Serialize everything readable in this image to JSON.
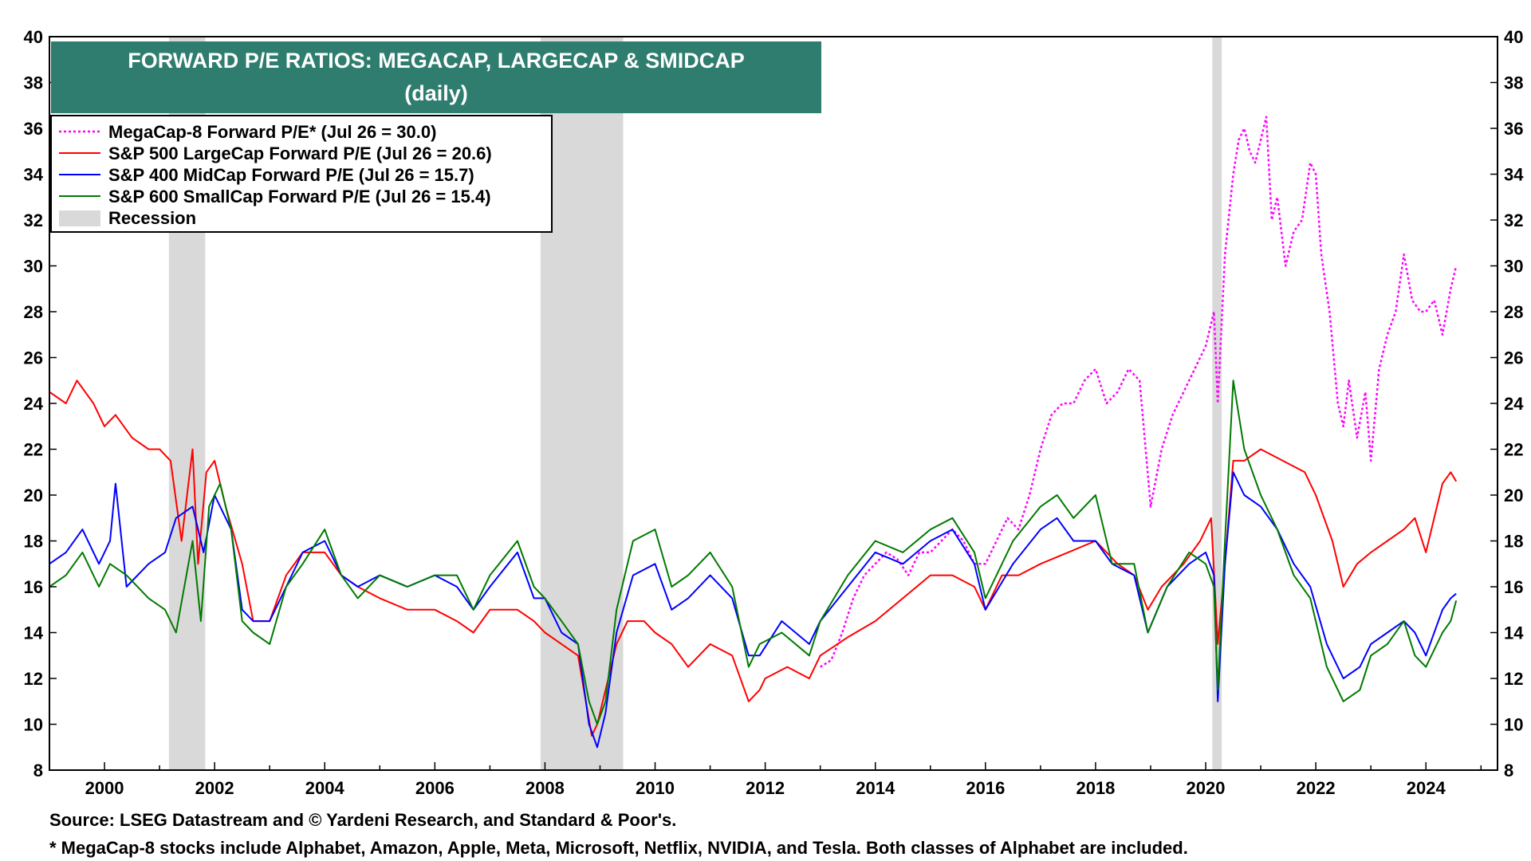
{
  "colors": {
    "megacap": "#ff00ff",
    "largecap": "#ff0000",
    "midcap": "#0000ff",
    "smallcap": "#007a00",
    "recession": "#d9d9d9",
    "title_bg": "#2e7d6e"
  },
  "chart_data": {
    "type": "line",
    "title": "FORWARD P/E RATIOS: MEGACAP, LARGECAP & SMIDCAP",
    "subtitle": "(daily)",
    "xlim": [
      1999.0,
      2025.3
    ],
    "ylim": [
      8,
      40
    ],
    "x_ticks": [
      2000,
      2002,
      2004,
      2006,
      2008,
      2010,
      2012,
      2014,
      2016,
      2018,
      2020,
      2022,
      2024
    ],
    "y_ticks": [
      8,
      10,
      12,
      14,
      16,
      18,
      20,
      22,
      24,
      26,
      28,
      30,
      32,
      34,
      36,
      38,
      40
    ],
    "grid": false,
    "legend_position": "top-left",
    "recessions": [
      {
        "start": 2001.17,
        "end": 2001.83
      },
      {
        "start": 2007.92,
        "end": 2009.42
      },
      {
        "start": 2020.12,
        "end": 2020.29
      }
    ],
    "legend": [
      {
        "key": "megacap",
        "label": "MegaCap-8 Forward P/E* (Jul 26 = 30.0)",
        "style": "dotted"
      },
      {
        "key": "largecap",
        "label": "S&P 500 LargeCap Forward P/E (Jul 26 = 20.6)",
        "style": "solid"
      },
      {
        "key": "midcap",
        "label": "S&P 400 MidCap Forward P/E (Jul 26 = 15.7)",
        "style": "solid"
      },
      {
        "key": "smallcap",
        "label": "S&P 600 SmallCap Forward P/E (Jul 26 = 15.4)",
        "style": "solid"
      },
      {
        "key": "recession",
        "label": "Recession",
        "style": "box"
      }
    ],
    "series": [
      {
        "name": "MegaCap-8 Forward P/E*",
        "key": "megacap",
        "dashed": true,
        "x": [
          2013.0,
          2013.2,
          2013.4,
          2013.6,
          2013.8,
          2014.0,
          2014.2,
          2014.4,
          2014.6,
          2014.8,
          2015.0,
          2015.2,
          2015.4,
          2015.6,
          2015.8,
          2016.0,
          2016.2,
          2016.4,
          2016.6,
          2016.8,
          2017.0,
          2017.2,
          2017.4,
          2017.6,
          2017.8,
          2018.0,
          2018.2,
          2018.4,
          2018.6,
          2018.8,
          2019.0,
          2019.2,
          2019.4,
          2019.6,
          2019.8,
          2020.0,
          2020.15,
          2020.22,
          2020.35,
          2020.5,
          2020.6,
          2020.7,
          2020.8,
          2020.9,
          2021.0,
          2021.1,
          2021.2,
          2021.3,
          2021.45,
          2021.6,
          2021.75,
          2021.9,
          2022.0,
          2022.1,
          2022.25,
          2022.4,
          2022.5,
          2022.6,
          2022.75,
          2022.9,
          2023.0,
          2023.15,
          2023.3,
          2023.45,
          2023.6,
          2023.75,
          2023.9,
          2024.0,
          2024.15,
          2024.3,
          2024.45,
          2024.55
        ],
        "y": [
          12.5,
          12.8,
          14.0,
          15.5,
          16.5,
          17.0,
          17.5,
          17.2,
          16.5,
          17.5,
          17.5,
          18.0,
          18.5,
          18.0,
          17.0,
          17.0,
          18.0,
          19.0,
          18.5,
          20.0,
          22.0,
          23.5,
          24.0,
          24.0,
          25.0,
          25.5,
          24.0,
          24.5,
          25.5,
          25.0,
          19.5,
          22.0,
          23.5,
          24.5,
          25.5,
          26.5,
          28.0,
          24.0,
          30.5,
          34.0,
          35.5,
          36.0,
          35.0,
          34.5,
          35.5,
          36.5,
          32.0,
          33.0,
          30.0,
          31.5,
          32.0,
          34.5,
          34.0,
          30.5,
          28.0,
          24.0,
          23.0,
          25.0,
          22.5,
          24.5,
          21.5,
          25.5,
          27.0,
          28.0,
          30.5,
          28.5,
          28.0,
          28.0,
          28.5,
          27.0,
          29.0,
          30.0
        ]
      },
      {
        "name": "S&P 500 LargeCap Forward P/E",
        "key": "largecap",
        "dashed": false,
        "x": [
          1999.0,
          1999.3,
          1999.5,
          1999.8,
          2000.0,
          2000.2,
          2000.5,
          2000.8,
          2001.0,
          2001.2,
          2001.4,
          2001.6,
          2001.7,
          2001.85,
          2002.0,
          2002.2,
          2002.5,
          2002.7,
          2003.0,
          2003.3,
          2003.6,
          2004.0,
          2004.3,
          2004.6,
          2005.0,
          2005.5,
          2006.0,
          2006.4,
          2006.7,
          2007.0,
          2007.5,
          2007.8,
          2008.0,
          2008.3,
          2008.6,
          2008.85,
          2008.95,
          2009.1,
          2009.3,
          2009.5,
          2009.8,
          2010.0,
          2010.3,
          2010.6,
          2011.0,
          2011.4,
          2011.7,
          2011.9,
          2012.0,
          2012.4,
          2012.8,
          2013.0,
          2013.5,
          2014.0,
          2014.5,
          2015.0,
          2015.4,
          2015.8,
          2016.0,
          2016.3,
          2016.6,
          2017.0,
          2017.5,
          2018.0,
          2018.4,
          2018.7,
          2018.95,
          2019.2,
          2019.6,
          2019.9,
          2020.1,
          2020.22,
          2020.35,
          2020.5,
          2020.7,
          2021.0,
          2021.4,
          2021.8,
          2022.0,
          2022.3,
          2022.5,
          2022.75,
          2023.0,
          2023.3,
          2023.6,
          2023.8,
          2024.0,
          2024.3,
          2024.45,
          2024.55
        ],
        "y": [
          24.5,
          24.0,
          25.0,
          24.0,
          23.0,
          23.5,
          22.5,
          22.0,
          22.0,
          21.5,
          18.0,
          22.0,
          17.0,
          21.0,
          21.5,
          19.5,
          17.0,
          14.5,
          14.5,
          16.5,
          17.5,
          17.5,
          16.5,
          16.0,
          15.5,
          15.0,
          15.0,
          14.5,
          14.0,
          15.0,
          15.0,
          14.5,
          14.0,
          13.5,
          13.0,
          9.5,
          10.0,
          11.5,
          13.5,
          14.5,
          14.5,
          14.0,
          13.5,
          12.5,
          13.5,
          13.0,
          11.0,
          11.5,
          12.0,
          12.5,
          12.0,
          13.0,
          13.8,
          14.5,
          15.5,
          16.5,
          16.5,
          16.0,
          15.0,
          16.5,
          16.5,
          17.0,
          17.5,
          18.0,
          17.0,
          16.5,
          15.0,
          16.0,
          17.0,
          18.0,
          19.0,
          13.5,
          17.0,
          21.5,
          21.5,
          22.0,
          21.5,
          21.0,
          20.0,
          18.0,
          16.0,
          17.0,
          17.5,
          18.0,
          18.5,
          19.0,
          17.5,
          20.5,
          21.0,
          20.6
        ]
      },
      {
        "name": "S&P 400 MidCap Forward P/E",
        "key": "midcap",
        "dashed": false,
        "x": [
          1999.0,
          1999.3,
          1999.6,
          1999.9,
          2000.1,
          2000.2,
          2000.4,
          2000.8,
          2001.1,
          2001.3,
          2001.6,
          2001.8,
          2002.0,
          2002.3,
          2002.5,
          2002.7,
          2003.0,
          2003.3,
          2003.6,
          2004.0,
          2004.3,
          2004.6,
          2005.0,
          2005.5,
          2006.0,
          2006.4,
          2006.7,
          2007.0,
          2007.5,
          2007.8,
          2008.0,
          2008.3,
          2008.6,
          2008.8,
          2008.95,
          2009.1,
          2009.3,
          2009.6,
          2010.0,
          2010.3,
          2010.6,
          2011.0,
          2011.4,
          2011.7,
          2011.9,
          2012.3,
          2012.8,
          2013.0,
          2013.5,
          2014.0,
          2014.5,
          2015.0,
          2015.4,
          2015.8,
          2016.0,
          2016.5,
          2017.0,
          2017.3,
          2017.6,
          2018.0,
          2018.3,
          2018.7,
          2018.95,
          2019.3,
          2019.7,
          2020.0,
          2020.15,
          2020.22,
          2020.35,
          2020.5,
          2020.7,
          2021.0,
          2021.3,
          2021.6,
          2021.9,
          2022.2,
          2022.5,
          2022.8,
          2023.0,
          2023.3,
          2023.6,
          2023.8,
          2024.0,
          2024.3,
          2024.45,
          2024.55
        ],
        "y": [
          17.0,
          17.5,
          18.5,
          17.0,
          18.0,
          20.5,
          16.0,
          17.0,
          17.5,
          19.0,
          19.5,
          17.5,
          20.0,
          18.5,
          15.0,
          14.5,
          14.5,
          16.0,
          17.5,
          18.0,
          16.5,
          16.0,
          16.5,
          16.0,
          16.5,
          16.0,
          15.0,
          16.0,
          17.5,
          15.5,
          15.5,
          14.0,
          13.5,
          10.0,
          9.0,
          10.5,
          14.0,
          16.5,
          17.0,
          15.0,
          15.5,
          16.5,
          15.5,
          13.0,
          13.0,
          14.5,
          13.5,
          14.5,
          16.0,
          17.5,
          17.0,
          18.0,
          18.5,
          17.0,
          15.0,
          17.0,
          18.5,
          19.0,
          18.0,
          18.0,
          17.0,
          16.5,
          14.0,
          16.0,
          17.0,
          17.5,
          16.5,
          11.0,
          17.0,
          21.0,
          20.0,
          19.5,
          18.5,
          17.0,
          16.0,
          13.5,
          12.0,
          12.5,
          13.5,
          14.0,
          14.5,
          14.0,
          13.0,
          15.0,
          15.5,
          15.7
        ]
      },
      {
        "name": "S&P 600 SmallCap Forward P/E",
        "key": "smallcap",
        "dashed": false,
        "x": [
          1999.0,
          1999.3,
          1999.6,
          1999.9,
          2000.1,
          2000.4,
          2000.8,
          2001.1,
          2001.3,
          2001.6,
          2001.75,
          2001.9,
          2002.1,
          2002.3,
          2002.5,
          2002.7,
          2003.0,
          2003.3,
          2003.6,
          2004.0,
          2004.3,
          2004.6,
          2005.0,
          2005.5,
          2006.0,
          2006.4,
          2006.7,
          2007.0,
          2007.5,
          2007.8,
          2008.0,
          2008.3,
          2008.6,
          2008.8,
          2008.95,
          2009.1,
          2009.3,
          2009.6,
          2010.0,
          2010.3,
          2010.6,
          2011.0,
          2011.4,
          2011.7,
          2011.9,
          2012.3,
          2012.8,
          2013.0,
          2013.5,
          2014.0,
          2014.5,
          2015.0,
          2015.4,
          2015.8,
          2016.0,
          2016.5,
          2017.0,
          2017.3,
          2017.6,
          2018.0,
          2018.3,
          2018.7,
          2018.95,
          2019.3,
          2019.7,
          2020.0,
          2020.15,
          2020.22,
          2020.35,
          2020.5,
          2020.7,
          2021.0,
          2021.3,
          2021.6,
          2021.9,
          2022.2,
          2022.5,
          2022.8,
          2023.0,
          2023.3,
          2023.6,
          2023.8,
          2024.0,
          2024.3,
          2024.45,
          2024.55
        ],
        "y": [
          16.0,
          16.5,
          17.5,
          16.0,
          17.0,
          16.5,
          15.5,
          15.0,
          14.0,
          18.0,
          14.5,
          19.5,
          20.5,
          18.5,
          14.5,
          14.0,
          13.5,
          16.0,
          17.0,
          18.5,
          16.5,
          15.5,
          16.5,
          16.0,
          16.5,
          16.5,
          15.0,
          16.5,
          18.0,
          16.0,
          15.5,
          14.5,
          13.5,
          11.0,
          10.0,
          11.0,
          15.0,
          18.0,
          18.5,
          16.0,
          16.5,
          17.5,
          16.0,
          12.5,
          13.5,
          14.0,
          13.0,
          14.5,
          16.5,
          18.0,
          17.5,
          18.5,
          19.0,
          17.5,
          15.5,
          18.0,
          19.5,
          20.0,
          19.0,
          20.0,
          17.0,
          17.0,
          14.0,
          16.0,
          17.5,
          17.0,
          16.0,
          11.5,
          18.0,
          25.0,
          22.0,
          20.0,
          18.5,
          16.5,
          15.5,
          12.5,
          11.0,
          11.5,
          13.0,
          13.5,
          14.5,
          13.0,
          12.5,
          14.0,
          14.5,
          15.4
        ]
      }
    ]
  },
  "footer": {
    "source": "Source: LSEG Datastream and © Yardeni Research, and Standard & Poor's.",
    "note": "* MegaCap-8 stocks include Alphabet, Amazon, Apple, Meta, Microsoft, Netflix, NVIDIA, and Tesla. Both classes of Alphabet are included."
  }
}
